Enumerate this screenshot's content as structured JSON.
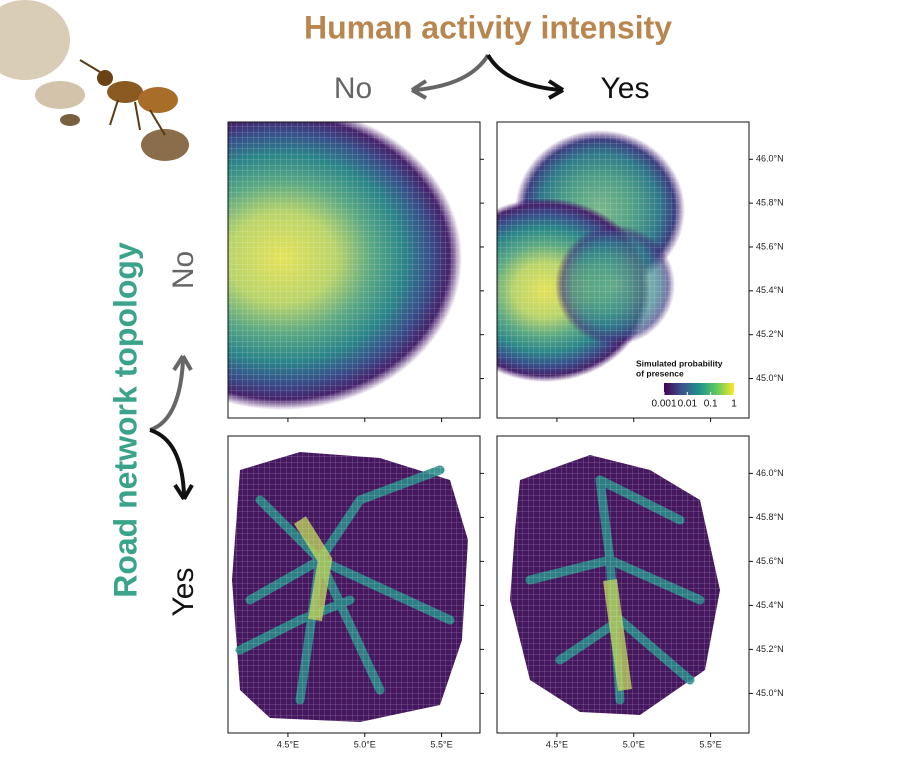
{
  "header": {
    "title": "Human activity intensity",
    "col_no": "No",
    "col_yes": "Yes"
  },
  "side": {
    "title": "Road network topology",
    "row_no": "No",
    "row_yes": "Yes"
  },
  "axes": {
    "xlim": [
      4.11,
      5.75
    ],
    "xticks": [
      {
        "value": 4.5,
        "label": "4.5°E"
      },
      {
        "value": 5.0,
        "label": "5.0°E"
      },
      {
        "value": 5.5,
        "label": "5.5°E"
      }
    ],
    "ylim": [
      44.82,
      46.17
    ],
    "yticks": [
      {
        "value": 45.0,
        "label": "45.0°N"
      },
      {
        "value": 45.2,
        "label": "45.2°N"
      },
      {
        "value": 45.4,
        "label": "45.4°N"
      },
      {
        "value": 45.6,
        "label": "45.6°N"
      },
      {
        "value": 45.8,
        "label": "45.8°N"
      },
      {
        "value": 46.0,
        "label": "46.0°N"
      }
    ]
  },
  "legend": {
    "title_line1": "Simulated probability",
    "title_line2": "of presence",
    "scale": "log",
    "lim": [
      0.001,
      1
    ],
    "ticks": [
      0.001,
      0.01,
      0.1,
      1
    ]
  }
}
